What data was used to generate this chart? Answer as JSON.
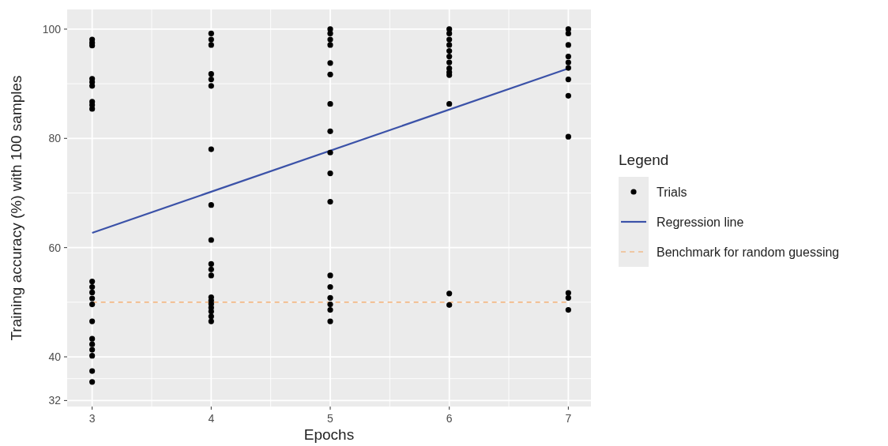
{
  "chart_data": {
    "type": "scatter",
    "xlabel": "Epochs",
    "ylabel": "Training accuracy (%) with 100 samples",
    "legend_title": "Legend",
    "xlim": [
      2.79,
      7.19
    ],
    "xticks": [
      3,
      4,
      5,
      6,
      7
    ],
    "ylim": [
      30.9,
      103.6
    ],
    "yticks": [
      32,
      {
        "value": 36,
        "label": null
      },
      40,
      {
        "value": 50,
        "label": null
      },
      60,
      {
        "value": 70,
        "label": null
      },
      80,
      {
        "value": 90,
        "label": null
      },
      100
    ],
    "grid": true,
    "legend": "right",
    "marker": "circle",
    "series": [
      {
        "name": "Trials",
        "color": "#000000",
        "x": [
          3,
          3,
          3,
          3,
          3,
          3,
          3,
          3,
          3,
          3,
          3,
          3,
          3,
          3,
          3,
          3,
          3,
          3,
          3,
          3,
          3,
          4,
          4,
          4,
          4,
          4,
          4,
          4,
          4,
          4,
          4,
          4,
          4,
          4,
          4,
          4,
          4,
          4,
          4,
          4,
          5,
          5,
          5,
          5,
          5,
          5,
          5,
          5,
          5,
          5,
          5,
          5,
          5,
          5,
          5,
          5,
          5,
          6,
          6,
          6,
          6,
          6,
          6,
          6,
          6,
          6,
          6,
          6,
          6,
          6,
          7,
          7,
          7,
          7,
          7,
          7,
          7,
          7,
          7,
          7,
          7,
          7
        ],
        "values": [
          98.1,
          97.5,
          97.0,
          90.9,
          90.3,
          89.6,
          86.7,
          86.1,
          85.4,
          53.8,
          52.8,
          51.8,
          50.7,
          49.6,
          46.5,
          43.3,
          42.3,
          41.3,
          40.2,
          37.4,
          35.4,
          99.2,
          98.1,
          97.1,
          91.8,
          90.8,
          89.6,
          78.0,
          67.8,
          61.4,
          57.0,
          56.0,
          54.9,
          50.9,
          50.3,
          49.7,
          49.0,
          48.3,
          47.4,
          46.5,
          100,
          99.2,
          98.1,
          97.1,
          93.8,
          91.7,
          86.3,
          81.3,
          77.4,
          73.6,
          68.4,
          54.9,
          52.8,
          50.8,
          49.6,
          48.6,
          46.5,
          100,
          99.2,
          98.1,
          97.1,
          96.0,
          95.0,
          93.9,
          92.8,
          92.1,
          91.6,
          86.3,
          51.6,
          49.5,
          100,
          99.2,
          97.1,
          95.0,
          93.9,
          92.9,
          90.8,
          87.8,
          80.3,
          51.7,
          50.8,
          48.6
        ]
      },
      {
        "name": "Regression line",
        "type": "line",
        "color": "#3b52a8",
        "x": [
          3,
          7
        ],
        "values": [
          62.7,
          92.8
        ],
        "line_style": "solid",
        "marker": "none"
      },
      {
        "name": "Benchmark for random guessing",
        "type": "line",
        "color": "#f4a35c",
        "x": [
          3,
          7
        ],
        "values": [
          50,
          50
        ],
        "line_style": "dashed",
        "marker": "none"
      }
    ]
  }
}
